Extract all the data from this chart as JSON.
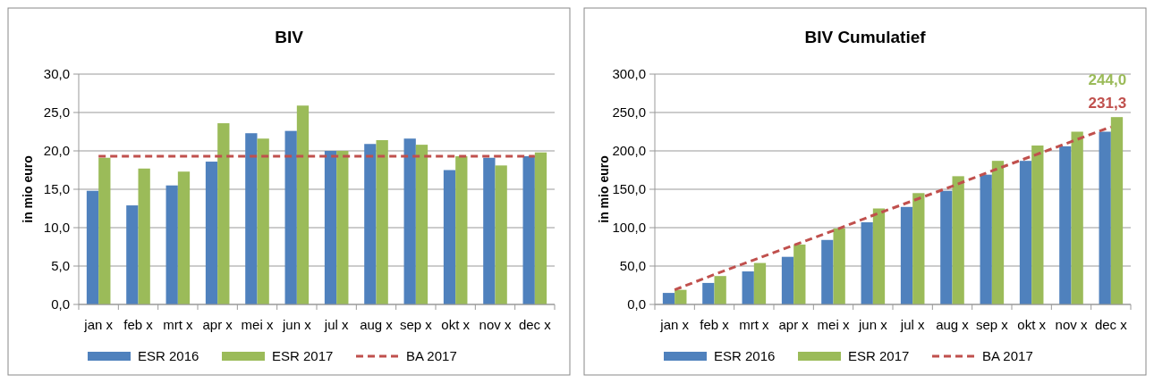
{
  "chart_data": [
    {
      "type": "bar",
      "title": "BIV",
      "ylabel": "in mio euro",
      "categories": [
        "jan x",
        "feb x",
        "mrt x",
        "apr x",
        "mei x",
        "jun x",
        "jul x",
        "aug x",
        "sep x",
        "okt x",
        "nov x",
        "dec x"
      ],
      "series": [
        {
          "name": "ESR 2016",
          "color": "#4f81bd",
          "values": [
            14.8,
            12.9,
            15.5,
            18.6,
            22.3,
            22.6,
            20.0,
            20.9,
            21.6,
            17.5,
            19.1,
            19.3
          ]
        },
        {
          "name": "ESR 2017",
          "color": "#9bbb59",
          "values": [
            19.1,
            17.7,
            17.3,
            23.6,
            21.6,
            25.9,
            20.0,
            21.4,
            20.8,
            19.3,
            18.1,
            19.8
          ]
        },
        {
          "name": "BA 2017",
          "type": "line",
          "line_style": "dashed",
          "color": "#c0504d",
          "values": [
            19.3,
            19.3,
            19.3,
            19.3,
            19.3,
            19.3,
            19.3,
            19.3,
            19.3,
            19.3,
            19.3,
            19.3
          ]
        }
      ],
      "ylim": [
        0,
        30
      ],
      "yticks": [
        {
          "value": 0,
          "label": "0,0"
        },
        {
          "value": 5,
          "label": "5,0"
        },
        {
          "value": 10,
          "label": "10,0"
        },
        {
          "value": 15,
          "label": "15,0"
        },
        {
          "value": 20,
          "label": "20,0"
        },
        {
          "value": 25,
          "label": "25,0"
        },
        {
          "value": 30,
          "label": "30,0"
        }
      ],
      "grid": "y",
      "legend": "bottom"
    },
    {
      "type": "bar",
      "title": "BIV Cumulatief",
      "ylabel": "in mio euro",
      "categories": [
        "jan x",
        "feb x",
        "mrt x",
        "apr x",
        "mei x",
        "jun x",
        "jul x",
        "aug x",
        "sep x",
        "okt x",
        "nov x",
        "dec x"
      ],
      "series": [
        {
          "name": "ESR 2016",
          "color": "#4f81bd",
          "values": [
            15,
            28,
            43,
            62,
            84,
            107,
            127,
            148,
            169,
            187,
            206,
            225
          ]
        },
        {
          "name": "ESR 2017",
          "color": "#9bbb59",
          "values": [
            19,
            37,
            54,
            78,
            99,
            125,
            145,
            167,
            187,
            207,
            225,
            244.0
          ],
          "value_labels": [
            null,
            null,
            null,
            null,
            null,
            null,
            null,
            null,
            null,
            null,
            null,
            "244,0"
          ]
        },
        {
          "name": "BA 2017",
          "type": "line",
          "line_style": "dashed",
          "color": "#c0504d",
          "values": [
            19,
            39,
            58,
            77,
            96,
            116,
            135,
            154,
            174,
            193,
            212,
            231.3
          ],
          "value_labels": [
            null,
            null,
            null,
            null,
            null,
            null,
            null,
            null,
            null,
            null,
            null,
            "231,3"
          ]
        }
      ],
      "ylim": [
        0,
        300
      ],
      "yticks": [
        {
          "value": 0,
          "label": "0,0"
        },
        {
          "value": 50,
          "label": "50,0"
        },
        {
          "value": 100,
          "label": "100,0"
        },
        {
          "value": 150,
          "label": "150,0"
        },
        {
          "value": 200,
          "label": "200,0"
        },
        {
          "value": 250,
          "label": "250,0"
        },
        {
          "value": 300,
          "label": "300,0"
        }
      ],
      "grid": "y",
      "legend": "bottom"
    }
  ]
}
